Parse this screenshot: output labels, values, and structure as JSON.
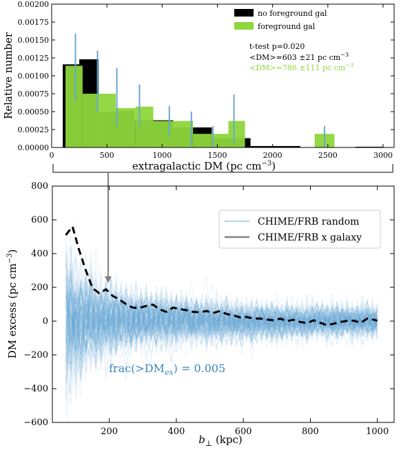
{
  "colors": {
    "black_bar": "#000000",
    "green_bar": "#8ed63b",
    "errorbar": "#6aa6d2",
    "random_line": "#6aa8d8",
    "xgal_line": "#000000",
    "annotation_green": "#8ed63b",
    "frac_text": "#3a87c0",
    "arrow": "#808080"
  },
  "chart_data": [
    {
      "type": "bar",
      "xlabel": "extragalactic DM (pc cm$^{-3}$)",
      "xlabel_text": "extragalactic DM (pc cm",
      "xlabel_sup": "−3",
      "xlabel_tail": ")",
      "ylabel": "Relative number",
      "xlim": [
        0,
        3100
      ],
      "ylim": [
        0,
        0.002
      ],
      "xticks": [
        0,
        500,
        1000,
        1500,
        2000,
        2500,
        3000
      ],
      "yticks": [
        "0.00000",
        "0.00025",
        "0.00050",
        "0.00075",
        "0.00100",
        "0.00125",
        "0.00150",
        "0.00175",
        "0.00200"
      ],
      "legend_position": "top-right",
      "series": [
        {
          "name": "no foreground gal",
          "bins": [
            [
              100,
              250
            ],
            [
              250,
              425
            ],
            [
              425,
              600
            ],
            [
              600,
              750
            ],
            [
              750,
              950
            ],
            [
              950,
              1100
            ],
            [
              1100,
              1300
            ],
            [
              1300,
              1450
            ],
            [
              1450,
              1600
            ],
            [
              1600,
              1800
            ],
            [
              1800,
              2000
            ],
            [
              2000,
              2250
            ],
            [
              2750,
              3000
            ]
          ],
          "values": [
            0.00116,
            0.00123,
            0.0005,
            0.00051,
            0.00038,
            0.00038,
            0.00028,
            0.00028,
            0.00013,
            0.00013,
            2e-05,
            2e-05,
            1e-05
          ]
        },
        {
          "name": "foreground gal",
          "bins": [
            [
              125,
              280
            ],
            [
              280,
              580
            ],
            [
              580,
              760
            ],
            [
              760,
              920
            ],
            [
              920,
              1280
            ],
            [
              1280,
              1440
            ],
            [
              1440,
              1600
            ],
            [
              1600,
              1750
            ],
            [
              2380,
              2560
            ]
          ],
          "values": [
            0.00114,
            0.00075,
            0.00055,
            0.00057,
            0.00037,
            0.00019,
            0.00019,
            0.00037,
            0.00019
          ],
          "errorbars": [
            {
              "x": 215,
              "lo": 0.00065,
              "hi": 0.00159
            },
            {
              "x": 415,
              "lo": 0.0005,
              "hi": 0.00135
            },
            {
              "x": 590,
              "lo": 0.0003,
              "hi": 0.00111
            },
            {
              "x": 795,
              "lo": 0.0003,
              "hi": 0.00088
            },
            {
              "x": 1065,
              "lo": 0.00015,
              "hi": 0.00058
            },
            {
              "x": 1265,
              "lo": 2e-05,
              "hi": 0.0005
            },
            {
              "x": 1460,
              "lo": 0.0,
              "hi": 0.0003
            },
            {
              "x": 1650,
              "lo": 4e-05,
              "hi": 0.00074
            },
            {
              "x": 2470,
              "lo": 0.0,
              "hi": 0.0003
            }
          ]
        }
      ],
      "annotations": [
        {
          "text": "t-test p=0.020",
          "sup": ""
        },
        {
          "text": "<DM>=603 ±21 pc cm",
          "sup": "−3"
        },
        {
          "text": "<DM>=786 ±111 pc cm",
          "sup": "−3"
        }
      ]
    },
    {
      "type": "line",
      "xlabel": "b_perp (kpc)",
      "xlabel_sym": "b",
      "xlabel_sub": "⊥",
      "xlabel_tail": " (kpc)",
      "ylabel": "DM excess (pc cm$^{-3}$)",
      "ylabel_text": "DM excess (pc cm",
      "ylabel_sup": "−3",
      "ylabel_tail": ")",
      "xlim": [
        30,
        1050
      ],
      "ylim": [
        -600,
        800
      ],
      "xticks": [
        200,
        400,
        600,
        800,
        1000
      ],
      "yticks": [
        -600,
        -400,
        -200,
        0,
        200,
        400,
        600,
        800
      ],
      "legend_position": "top-right",
      "series": [
        {
          "name": "CHIME/FRB random",
          "kind": "ensemble of random realizations around 0"
        },
        {
          "name": "CHIME/FRB x galaxy",
          "x": [
            70,
            90,
            110,
            130,
            150,
            170,
            190,
            210,
            230,
            250,
            270,
            290,
            310,
            330,
            350,
            370,
            390,
            410,
            430,
            450,
            470,
            490,
            510,
            530,
            550,
            570,
            590,
            610,
            630,
            650,
            670,
            690,
            710,
            730,
            750,
            770,
            790,
            810,
            830,
            850,
            870,
            890,
            910,
            930,
            950,
            970,
            990,
            1000
          ],
          "values": [
            510,
            560,
            420,
            300,
            195,
            165,
            188,
            150,
            128,
            100,
            80,
            78,
            90,
            98,
            70,
            55,
            80,
            72,
            65,
            55,
            52,
            60,
            48,
            60,
            42,
            35,
            22,
            25,
            15,
            15,
            10,
            5,
            15,
            0,
            8,
            -5,
            -12,
            5,
            -10,
            -25,
            -15,
            -5,
            2,
            3,
            -10,
            15,
            8,
            2
          ]
        }
      ],
      "frac_text": "frac(>DM",
      "frac_sub": "ex",
      "frac_tail": ") = 0.005"
    }
  ]
}
